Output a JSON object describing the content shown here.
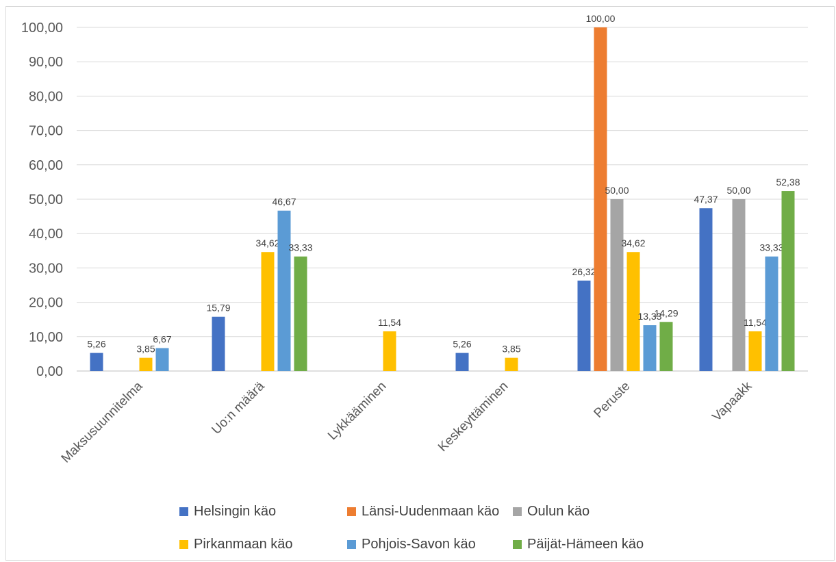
{
  "chart_data": {
    "type": "bar",
    "title": "",
    "xlabel": "",
    "ylabel": "",
    "ylim": [
      0,
      100
    ],
    "y_ticks": [
      "0,00",
      "10,00",
      "20,00",
      "30,00",
      "40,00",
      "50,00",
      "60,00",
      "70,00",
      "80,00",
      "90,00",
      "100,00"
    ],
    "categories": [
      "Maksusuunnitelma",
      "Uo:n määrä",
      "Lykkääminen",
      "Keskeyttäminen",
      "Peruste",
      "Vapaakk"
    ],
    "series": [
      {
        "name": "Helsingin käo",
        "color": "#4472C4",
        "values": [
          5.26,
          15.79,
          null,
          5.26,
          26.32,
          47.37
        ],
        "labels": [
          "5,26",
          "15,79",
          "",
          "5,26",
          "26,32",
          "47,37"
        ]
      },
      {
        "name": "Länsi-Uudenmaan käo",
        "color": "#ED7D31",
        "values": [
          null,
          null,
          null,
          null,
          100.0,
          null
        ],
        "labels": [
          "",
          "",
          "",
          "",
          "100,00",
          ""
        ]
      },
      {
        "name": "Oulun käo",
        "color": "#A5A5A5",
        "values": [
          null,
          null,
          null,
          null,
          50.0,
          50.0
        ],
        "labels": [
          "",
          "",
          "",
          "",
          "50,00",
          "50,00"
        ]
      },
      {
        "name": "Pirkanmaan käo",
        "color": "#FFC000",
        "values": [
          3.85,
          34.62,
          11.54,
          3.85,
          34.62,
          11.54
        ],
        "labels": [
          "3,85",
          "34,62",
          "11,54",
          "3,85",
          "34,62",
          "11,54"
        ]
      },
      {
        "name": "Pohjois-Savon käo",
        "color": "#5B9BD5",
        "values": [
          6.67,
          46.67,
          null,
          null,
          13.33,
          33.33
        ],
        "labels": [
          "6,67",
          "46,67",
          "",
          "",
          "13,33",
          "33,33"
        ]
      },
      {
        "name": "Päijät-Hämeen käo",
        "color": "#70AD47",
        "values": [
          null,
          33.33,
          null,
          null,
          14.29,
          52.38
        ],
        "labels": [
          "",
          "33,33",
          "",
          "",
          "14,29",
          "52,38"
        ]
      }
    ],
    "grid": true,
    "legend_position": "bottom"
  }
}
